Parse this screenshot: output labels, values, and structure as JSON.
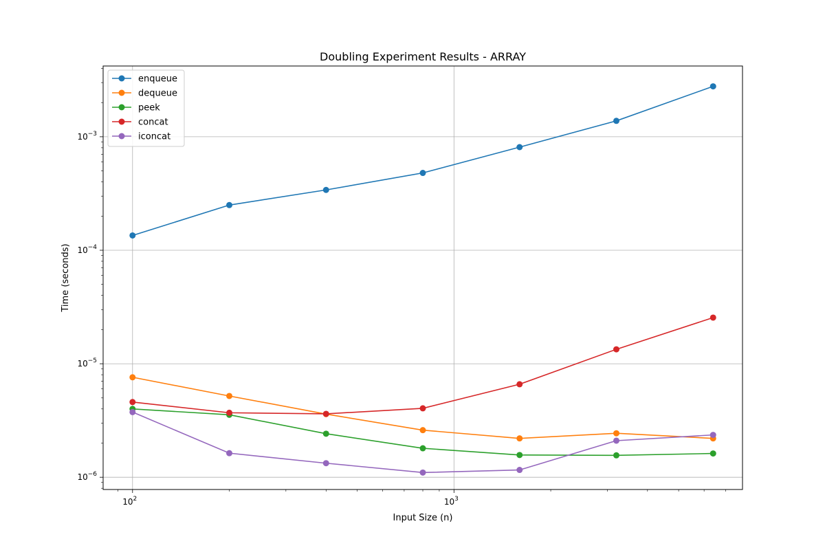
{
  "chart_data": {
    "type": "line",
    "title": "Doubling Experiment Results - ARRAY",
    "xlabel": "Input Size (n)",
    "ylabel": "Time (seconds)",
    "xscale": "log",
    "yscale": "log",
    "xlim": [
      81,
      7900
    ],
    "ylim": [
      7.8e-07,
      0.0042
    ],
    "grid": true,
    "legend_position": "top-left",
    "x": [
      100,
      200,
      400,
      800,
      1600,
      3200,
      6400
    ],
    "series": [
      {
        "name": "enqueue",
        "color": "#1f77b4",
        "values": [
          0.000135,
          0.00025,
          0.00034,
          0.00048,
          0.00081,
          0.00138,
          0.00278
        ]
      },
      {
        "name": "dequeue",
        "color": "#ff7f0e",
        "values": [
          7.6e-06,
          5.2e-06,
          3.6e-06,
          2.6e-06,
          2.2e-06,
          2.44e-06,
          2.2e-06
        ]
      },
      {
        "name": "peek",
        "color": "#2ca02c",
        "values": [
          4e-06,
          3.55e-06,
          2.42e-06,
          1.8e-06,
          1.57e-06,
          1.56e-06,
          1.62e-06
        ]
      },
      {
        "name": "concat",
        "color": "#d62728",
        "values": [
          4.6e-06,
          3.7e-06,
          3.62e-06,
          4.05e-06,
          6.6e-06,
          1.34e-05,
          2.55e-05
        ]
      },
      {
        "name": "iconcat",
        "color": "#9467bd",
        "values": [
          3.75e-06,
          1.63e-06,
          1.33e-06,
          1.1e-06,
          1.16e-06,
          2.1e-06,
          2.36e-06
        ]
      }
    ],
    "x_ticks": [
      {
        "value": 100,
        "base": "10",
        "exp": "2"
      },
      {
        "value": 1000,
        "base": "10",
        "exp": "3"
      }
    ],
    "y_ticks": [
      {
        "value": 1e-06,
        "base": "10",
        "exp": "−6"
      },
      {
        "value": 1e-05,
        "base": "10",
        "exp": "−5"
      },
      {
        "value": 0.0001,
        "base": "10",
        "exp": "−4"
      },
      {
        "value": 0.001,
        "base": "10",
        "exp": "−3"
      }
    ]
  }
}
